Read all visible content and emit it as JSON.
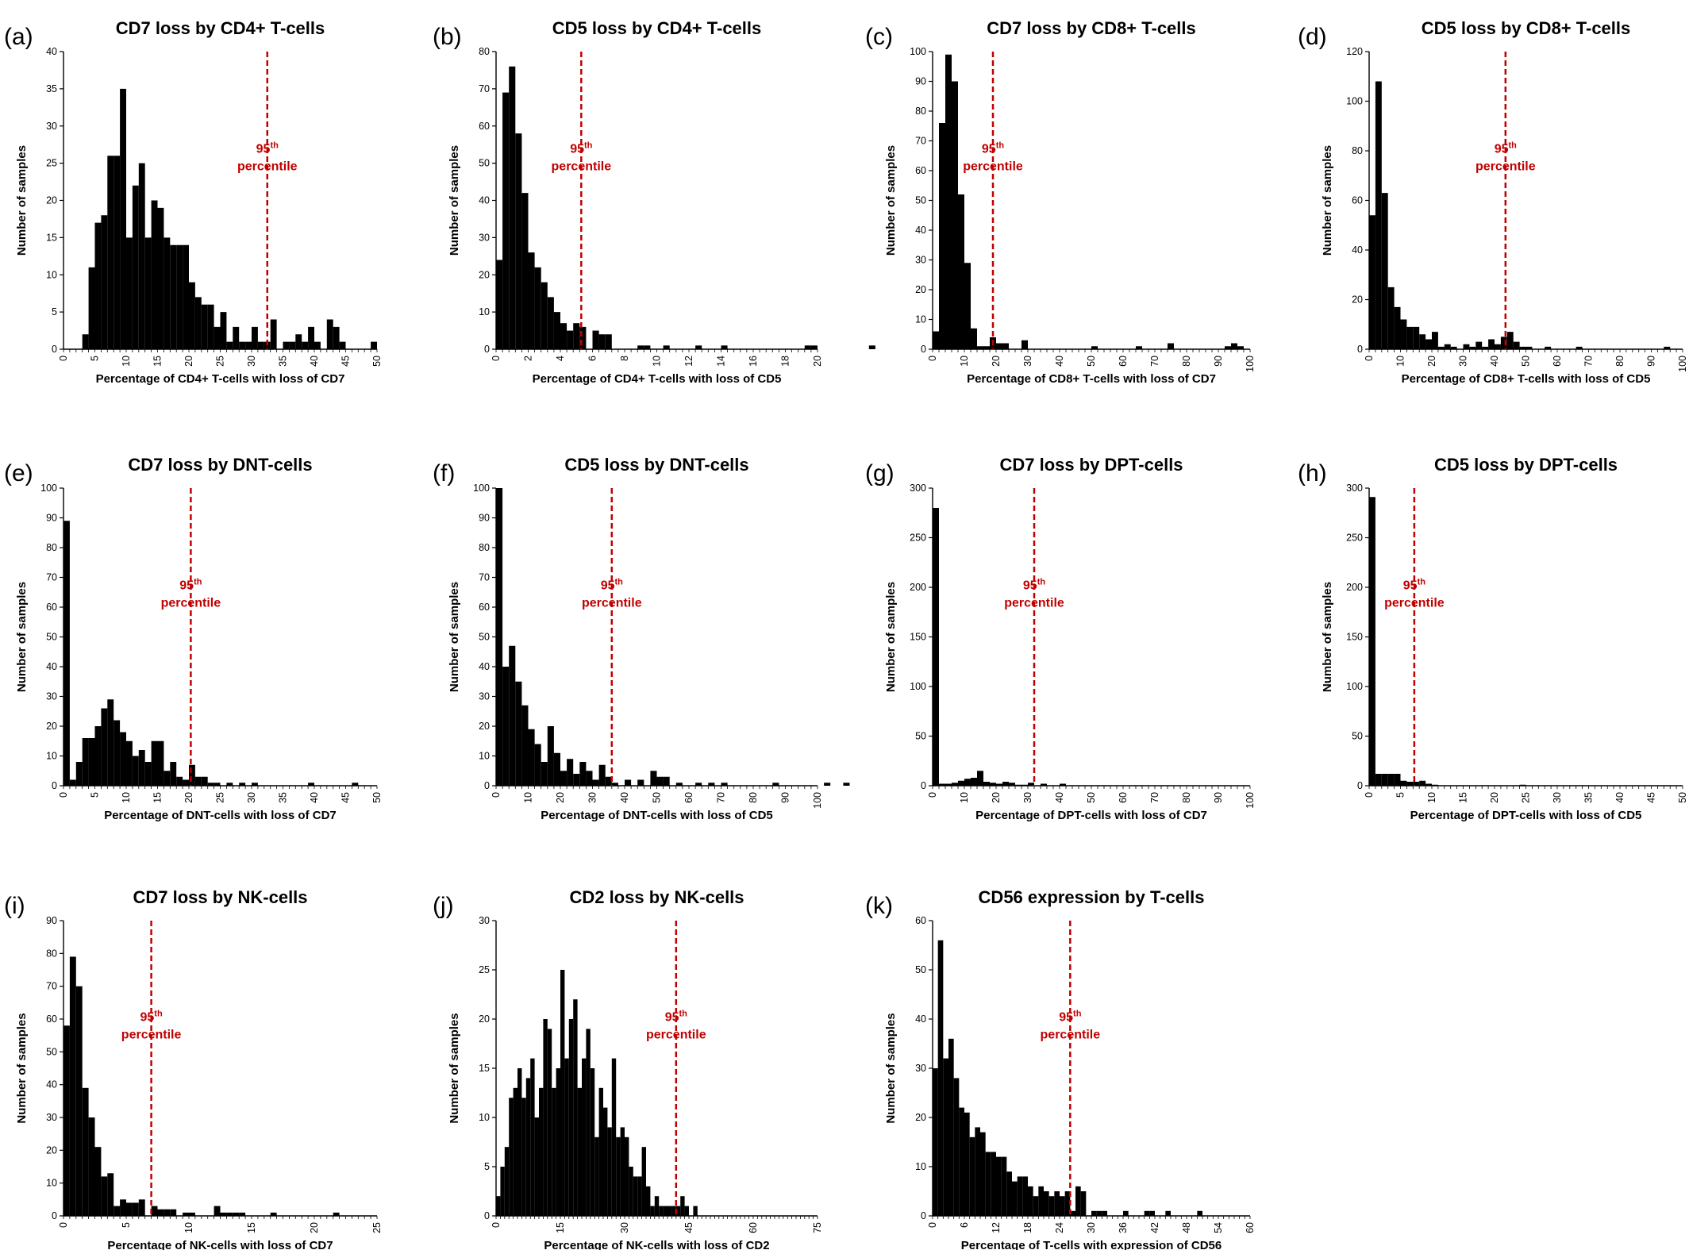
{
  "chart_data": [
    {
      "id": "a",
      "type": "bar",
      "letter": "(a)",
      "title": "CD7 loss by CD4+ T-cells",
      "xlabel": "Percentage of CD4+ T-cells with loss of CD7",
      "ylabel": "Number of samples",
      "xlim": [
        0,
        50
      ],
      "ylim": [
        0,
        40
      ],
      "xticks": [
        0,
        5,
        10,
        15,
        20,
        25,
        30,
        35,
        40,
        45,
        50
      ],
      "yticks": [
        0,
        5,
        10,
        15,
        20,
        25,
        30,
        35,
        40
      ],
      "bin_width": 1,
      "bin_start": 0,
      "values": [
        0,
        0,
        0,
        2,
        11,
        17,
        18,
        26,
        26,
        35,
        15,
        22,
        25,
        15,
        20,
        19,
        15,
        14,
        14,
        14,
        9,
        7,
        6,
        6,
        3,
        5,
        1,
        3,
        1,
        1,
        3,
        1,
        1,
        4,
        0,
        1,
        1,
        2,
        1,
        3,
        1,
        0,
        4,
        3,
        1,
        0,
        0,
        0,
        0,
        1
      ],
      "p95": 32.5,
      "p95_label": "95",
      "p95_sup": "th",
      "p95_word": "percentile"
    },
    {
      "id": "b",
      "type": "bar",
      "letter": "(b)",
      "title": "CD5 loss by CD4+ T-cells",
      "xlabel": "Percentage of CD4+ T-cells with loss of CD5",
      "ylabel": "Number of samples",
      "xlim": [
        0,
        20
      ],
      "ylim": [
        0,
        80
      ],
      "xticks": [
        0,
        2,
        4,
        6,
        8,
        10,
        12,
        14,
        16,
        18,
        20
      ],
      "yticks": [
        0,
        10,
        20,
        30,
        40,
        50,
        60,
        70,
        80
      ],
      "bin_width": 0.4,
      "bin_start": 0,
      "values": [
        24,
        69,
        76,
        58,
        42,
        26,
        22,
        18,
        14,
        10,
        7,
        5,
        7,
        6,
        0,
        5,
        4,
        4,
        0,
        0,
        0,
        0,
        1,
        1,
        0,
        0,
        1,
        0,
        0,
        0,
        0,
        1,
        0,
        0,
        0,
        1,
        0,
        0,
        0,
        0,
        0,
        0,
        0,
        0,
        0,
        0,
        0,
        0,
        1,
        1,
        0,
        0,
        0,
        0,
        0,
        0,
        0,
        0,
        1
      ],
      "p95": 5.3,
      "p95_label": "95",
      "p95_sup": "th",
      "p95_word": "percentile"
    },
    {
      "id": "c",
      "type": "bar",
      "letter": "(c)",
      "title": "CD7 loss by CD8+ T-cells",
      "xlabel": "Percentage of CD8+ T-cells with loss of CD7",
      "ylabel": "Number of samples",
      "xlim": [
        0,
        100
      ],
      "ylim": [
        0,
        100
      ],
      "xticks": [
        0,
        10,
        20,
        30,
        40,
        50,
        60,
        70,
        80,
        90,
        100
      ],
      "yticks": [
        0,
        10,
        20,
        30,
        40,
        50,
        60,
        70,
        80,
        90,
        100
      ],
      "bin_width": 2,
      "bin_start": 0,
      "values": [
        6,
        76,
        99,
        90,
        52,
        29,
        7,
        1,
        1,
        4,
        2,
        2,
        0,
        0,
        3,
        0,
        0,
        0,
        0,
        0,
        0,
        0,
        0,
        0,
        0,
        1,
        0,
        0,
        0,
        0,
        0,
        0,
        1,
        0,
        0,
        0,
        0,
        2,
        0,
        0,
        0,
        0,
        0,
        0,
        0,
        0,
        1,
        2,
        1
      ],
      "p95": 19,
      "p95_label": "95",
      "p95_sup": "th",
      "p95_word": "percentile"
    },
    {
      "id": "d",
      "type": "bar",
      "letter": "(d)",
      "title": "CD5 loss by CD8+ T-cells",
      "xlabel": "Percentage of CD8+ T-cells with loss of CD5",
      "ylabel": "Number of samples",
      "xlim": [
        0,
        100
      ],
      "ylim": [
        0,
        120
      ],
      "xticks": [
        0,
        10,
        20,
        30,
        40,
        50,
        60,
        70,
        80,
        90,
        100
      ],
      "yticks": [
        0,
        20,
        40,
        60,
        80,
        100,
        120
      ],
      "bin_width": 2,
      "bin_start": 0,
      "values": [
        54,
        108,
        63,
        25,
        17,
        12,
        9,
        9,
        6,
        4,
        7,
        1,
        2,
        1,
        0,
        2,
        1,
        3,
        1,
        4,
        2,
        5,
        7,
        3,
        1,
        1,
        0,
        0,
        1,
        0,
        0,
        0,
        0,
        1,
        0,
        0,
        0,
        0,
        0,
        0,
        0,
        0,
        0,
        0,
        0,
        0,
        0,
        1
      ],
      "p95": 43.5,
      "p95_label": "95",
      "p95_sup": "th",
      "p95_word": "percentile"
    },
    {
      "id": "e",
      "type": "bar",
      "letter": "(e)",
      "title": "CD7 loss by DNT-cells",
      "xlabel": "Percentage of DNT-cells with loss of CD7",
      "ylabel": "Number of samples",
      "xlim": [
        0,
        50
      ],
      "ylim": [
        0,
        100
      ],
      "xticks": [
        0,
        5,
        10,
        15,
        20,
        25,
        30,
        35,
        40,
        45,
        50
      ],
      "yticks": [
        0,
        10,
        20,
        30,
        40,
        50,
        60,
        70,
        80,
        90,
        100
      ],
      "bin_width": 1,
      "bin_start": 0,
      "values": [
        89,
        2,
        8,
        16,
        16,
        20,
        26,
        29,
        22,
        18,
        15,
        10,
        12,
        8,
        15,
        15,
        5,
        8,
        3,
        2,
        7,
        3,
        3,
        1,
        1,
        0,
        1,
        0,
        1,
        0,
        1,
        0,
        0,
        0,
        0,
        0,
        0,
        0,
        0,
        1,
        0,
        0,
        0,
        0,
        0,
        0,
        1
      ],
      "p95": 20.3,
      "p95_label": "95",
      "p95_sup": "th",
      "p95_word": "percentile"
    },
    {
      "id": "f",
      "type": "bar",
      "letter": "(f)",
      "title": "CD5 loss by DNT-cells",
      "xlabel": "Percentage of DNT-cells with loss of CD5",
      "ylabel": "Number of samples",
      "xlim": [
        0,
        100
      ],
      "ylim": [
        0,
        100
      ],
      "xticks": [
        0,
        10,
        20,
        30,
        40,
        50,
        60,
        70,
        80,
        90,
        100
      ],
      "yticks": [
        0,
        10,
        20,
        30,
        40,
        50,
        60,
        70,
        80,
        90,
        100
      ],
      "bin_width": 2,
      "bin_start": 0,
      "values": [
        100,
        40,
        47,
        35,
        27,
        19,
        14,
        8,
        20,
        11,
        5,
        9,
        4,
        8,
        5,
        2,
        7,
        3,
        1,
        0,
        2,
        0,
        2,
        0,
        5,
        3,
        3,
        0,
        1,
        0,
        0,
        1,
        0,
        1,
        0,
        1,
        0,
        0,
        0,
        0,
        0,
        0,
        0,
        1,
        0,
        0,
        0,
        0,
        0,
        0,
        0,
        1,
        0,
        0,
        1,
        0,
        0,
        0
      ],
      "p95": 36,
      "p95_label": "95",
      "p95_sup": "th",
      "p95_word": "percentile"
    },
    {
      "id": "g",
      "type": "bar",
      "letter": "(g)",
      "title": "CD7 loss by DPT-cells",
      "xlabel": "Percentage of DPT-cells with loss of CD7",
      "ylabel": "Number of samples",
      "xlim": [
        0,
        100
      ],
      "ylim": [
        0,
        300
      ],
      "xticks": [
        0,
        10,
        20,
        30,
        40,
        50,
        60,
        70,
        80,
        90,
        100
      ],
      "yticks": [
        0,
        50,
        100,
        150,
        200,
        250,
        300
      ],
      "bin_width": 2,
      "bin_start": 0,
      "values": [
        280,
        2,
        2,
        3,
        5,
        7,
        8,
        15,
        4,
        3,
        2,
        4,
        3,
        1,
        1,
        3,
        0,
        2,
        0,
        0,
        2
      ],
      "p95": 32,
      "p95_label": "95",
      "p95_sup": "th",
      "p95_word": "percentile"
    },
    {
      "id": "h",
      "type": "bar",
      "letter": "(h)",
      "title": "CD5 loss by DPT-cells",
      "xlabel": "Percentage of DPT-cells with loss of CD5",
      "ylabel": "Number of samples",
      "xlim": [
        0,
        50
      ],
      "ylim": [
        0,
        300
      ],
      "xticks": [
        0,
        5,
        10,
        15,
        20,
        25,
        30,
        35,
        40,
        45,
        50
      ],
      "yticks": [
        0,
        50,
        100,
        150,
        200,
        250,
        300
      ],
      "bin_width": 1,
      "bin_start": 0,
      "values": [
        291,
        12,
        12,
        12,
        12,
        5,
        4,
        4,
        5,
        2,
        1,
        0,
        0,
        0,
        0,
        0,
        0,
        0,
        0,
        0,
        0,
        0,
        0,
        0,
        1
      ],
      "p95": 7.2,
      "p95_label": "95",
      "p95_sup": "th",
      "p95_word": "percentile"
    },
    {
      "id": "i",
      "type": "bar",
      "letter": "(i)",
      "title": "CD7 loss by NK-cells",
      "xlabel": "Percentage of NK-cells with loss of CD7",
      "ylabel": "Number of samples",
      "xlim": [
        0,
        25
      ],
      "ylim": [
        0,
        90
      ],
      "xticks": [
        0,
        5,
        10,
        15,
        20,
        25
      ],
      "yticks": [
        0,
        10,
        20,
        30,
        40,
        50,
        60,
        70,
        80,
        90
      ],
      "bin_width": 0.5,
      "bin_start": 0,
      "values": [
        58,
        79,
        70,
        39,
        30,
        21,
        12,
        13,
        3,
        5,
        4,
        4,
        5,
        0,
        3,
        2,
        2,
        2,
        0,
        1,
        1,
        0,
        0,
        0,
        3,
        1,
        1,
        1,
        1,
        0,
        0,
        0,
        0,
        1,
        0,
        0,
        0,
        0,
        0,
        0,
        0,
        0,
        0,
        1
      ],
      "p95": 7,
      "p95_label": "95",
      "p95_sup": "th",
      "p95_word": "percentile"
    },
    {
      "id": "j",
      "type": "bar",
      "letter": "(j)",
      "title": "CD2 loss by NK-cells",
      "xlabel": "Percentage of NK-cells with loss of CD2",
      "ylabel": "Number of samples",
      "xlim": [
        0,
        75
      ],
      "ylim": [
        0,
        30
      ],
      "xticks": [
        0,
        15,
        30,
        45,
        60,
        75
      ],
      "yticks": [
        0,
        5,
        10,
        15,
        20,
        25,
        30
      ],
      "bin_width": 1,
      "bin_start": 0,
      "values": [
        2,
        5,
        7,
        12,
        13,
        15,
        12,
        14,
        16,
        10,
        13,
        20,
        19,
        13,
        15,
        25,
        16,
        20,
        22,
        13,
        16,
        19,
        15,
        8,
        13,
        11,
        9,
        16,
        8,
        9,
        8,
        5,
        4,
        4,
        7,
        3,
        1,
        2,
        1,
        1,
        1,
        1,
        1,
        2,
        1,
        0,
        1
      ],
      "p95": 42,
      "p95_label": "95",
      "p95_sup": "th",
      "p95_word": "percentile"
    },
    {
      "id": "k",
      "type": "bar",
      "letter": "(k)",
      "title": "CD56 expression by T-cells",
      "xlabel": "Percentage of T-cells with expression of CD56",
      "ylabel": "Number of samples",
      "xlim": [
        0,
        60
      ],
      "ylim": [
        0,
        60
      ],
      "xticks": [
        0,
        6,
        12,
        18,
        24,
        30,
        36,
        42,
        48,
        54,
        60
      ],
      "yticks": [
        0,
        10,
        20,
        30,
        40,
        50,
        60
      ],
      "bin_width": 1,
      "bin_start": 0,
      "values": [
        30,
        56,
        32,
        36,
        28,
        22,
        21,
        16,
        18,
        17,
        13,
        13,
        12,
        12,
        9,
        7,
        8,
        8,
        6,
        4,
        6,
        5,
        4,
        5,
        4,
        5,
        1,
        6,
        5,
        0,
        1,
        1,
        1,
        0,
        0,
        0,
        1,
        0,
        0,
        0,
        1,
        1,
        0,
        0,
        1,
        0,
        0,
        0,
        0,
        0,
        1
      ],
      "p95": 26,
      "p95_label": "95",
      "p95_sup": "th",
      "p95_word": "percentile"
    }
  ]
}
